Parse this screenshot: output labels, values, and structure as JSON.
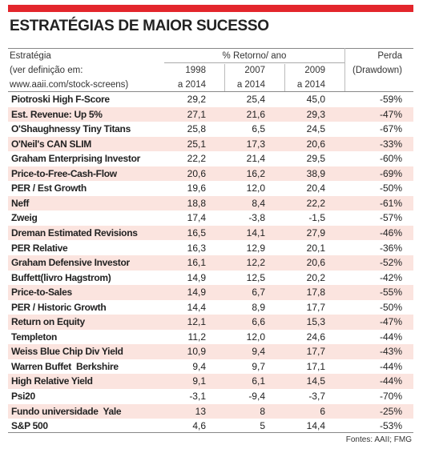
{
  "header": {
    "title": "ESTRATÉGIAS DE MAIOR SUCESSO",
    "strategy_label": [
      "Estratégia",
      "(ver definição em:",
      "www.aaii.com/stock-screens)"
    ],
    "return_label": "% Retorno/ ano",
    "periods": [
      [
        "1998",
        "a 2014"
      ],
      [
        "2007",
        "a 2014"
      ],
      [
        "2009",
        "a 2014"
      ]
    ],
    "loss_label": [
      "Perda",
      "(Drawdown)"
    ]
  },
  "table": {
    "rows": [
      [
        "Piotroski High F-Score",
        "29,2",
        "25,4",
        "45,0",
        "-59%"
      ],
      [
        "Est. Revenue: Up 5%",
        "27,1",
        "21,6",
        "29,3",
        "-47%"
      ],
      [
        "O'Shaughnessy Tiny Titans",
        "25,8",
        "6,5",
        "24,5",
        "-67%"
      ],
      [
        "O'Neil's CAN SLIM",
        "25,1",
        "17,3",
        "20,6",
        "-33%"
      ],
      [
        "Graham Enterprising Investor",
        "22,2",
        "21,4",
        "29,5",
        "-60%"
      ],
      [
        "Price-to-Free-Cash-Flow",
        "20,6",
        "16,2",
        "38,9",
        "-69%"
      ],
      [
        "PER / Est Growth",
        "19,6",
        "12,0",
        "20,4",
        "-50%"
      ],
      [
        "Neff",
        "18,8",
        "8,4",
        "22,2",
        "-61%"
      ],
      [
        "Zweig",
        "17,4",
        "-3,8",
        "-1,5",
        "-57%"
      ],
      [
        "Dreman Estimated Revisions",
        "16,5",
        "14,1",
        "27,9",
        "-46%"
      ],
      [
        "PER Relative",
        "16,3",
        "12,9",
        "20,1",
        "-36%"
      ],
      [
        "Graham Defensive Investor",
        "16,1",
        "12,2",
        "20,6",
        "-52%"
      ],
      [
        "Buffett(livro Hagstrom)",
        "14,9",
        "12,5",
        "20,2",
        "-42%"
      ],
      [
        "Price-to-Sales",
        "14,9",
        "6,7",
        "17,8",
        "-55%"
      ],
      [
        "PER / Historic Growth",
        "14,4",
        "8,9",
        "17,7",
        "-50%"
      ],
      [
        "Return on Equity",
        "12,1",
        "6,6",
        "15,3",
        "-47%"
      ],
      [
        "Templeton",
        "11,2",
        "12,0",
        "24,6",
        "-44%"
      ],
      [
        "Weiss Blue Chip Div Yield",
        "10,9",
        "9,4",
        "17,7",
        "-43%"
      ],
      [
        "Warren Buffet  Berkshire",
        "9,4",
        "9,7",
        "17,1",
        "-44%"
      ],
      [
        "High Relative Yield",
        "9,1",
        "6,1",
        "14,5",
        "-44%"
      ],
      [
        "Psi20",
        "-3,1",
        "-9,4",
        "-3,7",
        "-70%"
      ],
      [
        "Fundo universidade  Yale",
        "13",
        "8",
        "6",
        "-25%"
      ],
      [
        "S&P 500",
        "4,6",
        "5",
        "14,4",
        "-53%"
      ]
    ]
  },
  "footer": "Fontes: AAII; FMG"
}
